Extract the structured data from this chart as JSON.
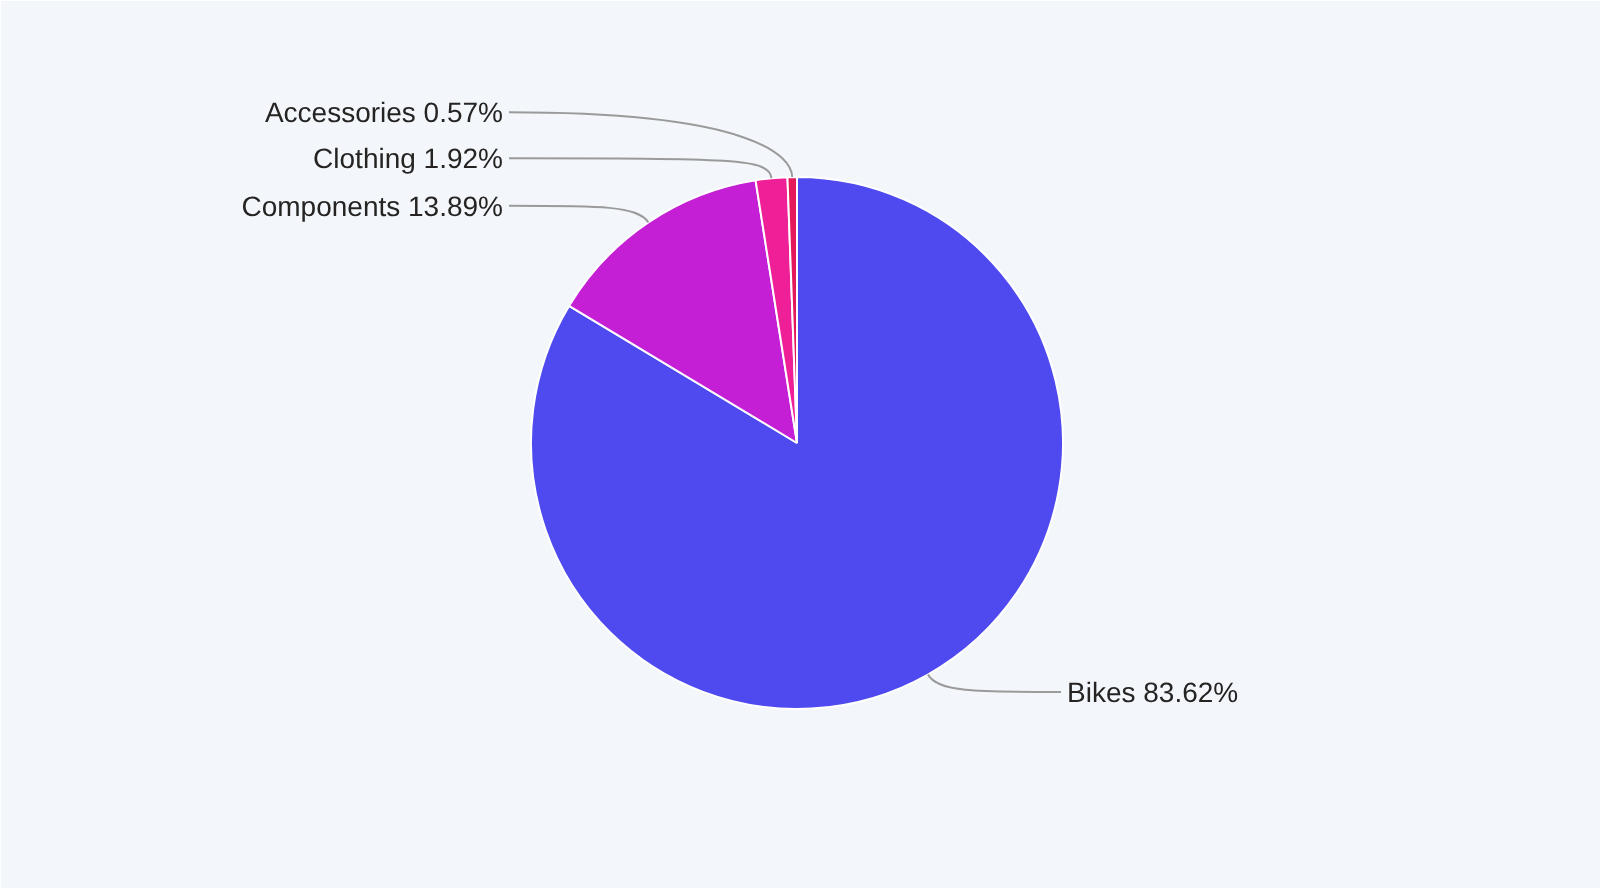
{
  "chart_data": {
    "type": "pie",
    "categories": [
      "Bikes",
      "Components",
      "Clothing",
      "Accessories"
    ],
    "values": [
      83.62,
      13.89,
      1.92,
      0.57
    ],
    "colors": [
      "#4e4af0",
      "#c41fd5",
      "#ef1f98",
      "#e3195c"
    ],
    "value_labels": [
      "83.62%",
      "13.89%",
      "1.92%",
      "0.57%"
    ]
  }
}
